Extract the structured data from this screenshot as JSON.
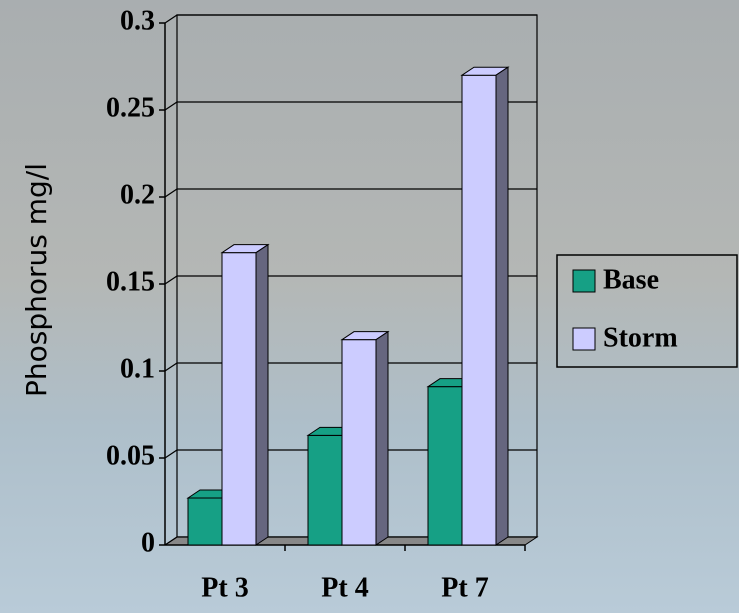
{
  "chart_data": {
    "type": "bar3d",
    "y_label": "Phosphorus mg/l",
    "categories": [
      "Pt 3",
      "Pt 4",
      "Pt 7"
    ],
    "series": [
      {
        "name": "Base",
        "color": "#16a085",
        "values": [
          0.027,
          0.063,
          0.091
        ]
      },
      {
        "name": "Storm",
        "color": "#ccccff",
        "values": [
          0.168,
          0.118,
          0.27
        ]
      }
    ],
    "ylim": [
      0,
      0.3
    ],
    "yticks": [
      0,
      0.05,
      0.1,
      0.15,
      0.2,
      0.25,
      0.3
    ],
    "grid": true,
    "legend": "right"
  }
}
